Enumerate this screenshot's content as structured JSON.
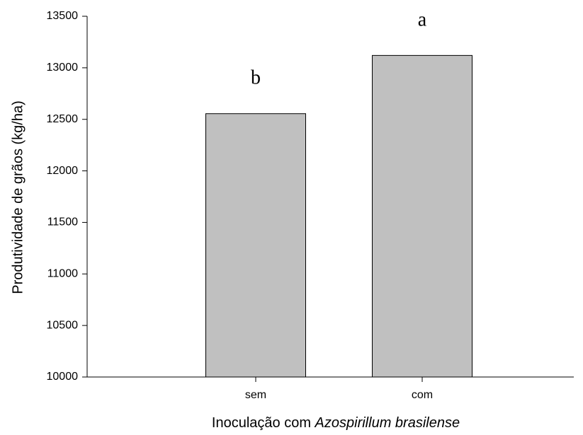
{
  "chart_data": {
    "type": "bar",
    "categories": [
      "sem",
      "com"
    ],
    "values": [
      12555,
      13120
    ],
    "annotations": [
      "b",
      "a"
    ],
    "title": "",
    "xlabel_prefix": "Inoculação com ",
    "xlabel_italic": "Azospirillum brasilense",
    "ylabel": "Produtividade de grãos (kg/ha)",
    "ylim": [
      10000,
      13500
    ],
    "yticks": [
      10000,
      10500,
      11000,
      11500,
      12000,
      12500,
      13000,
      13500
    ],
    "bar_color": "#c0c0c0",
    "grid": false,
    "legend": "none"
  }
}
